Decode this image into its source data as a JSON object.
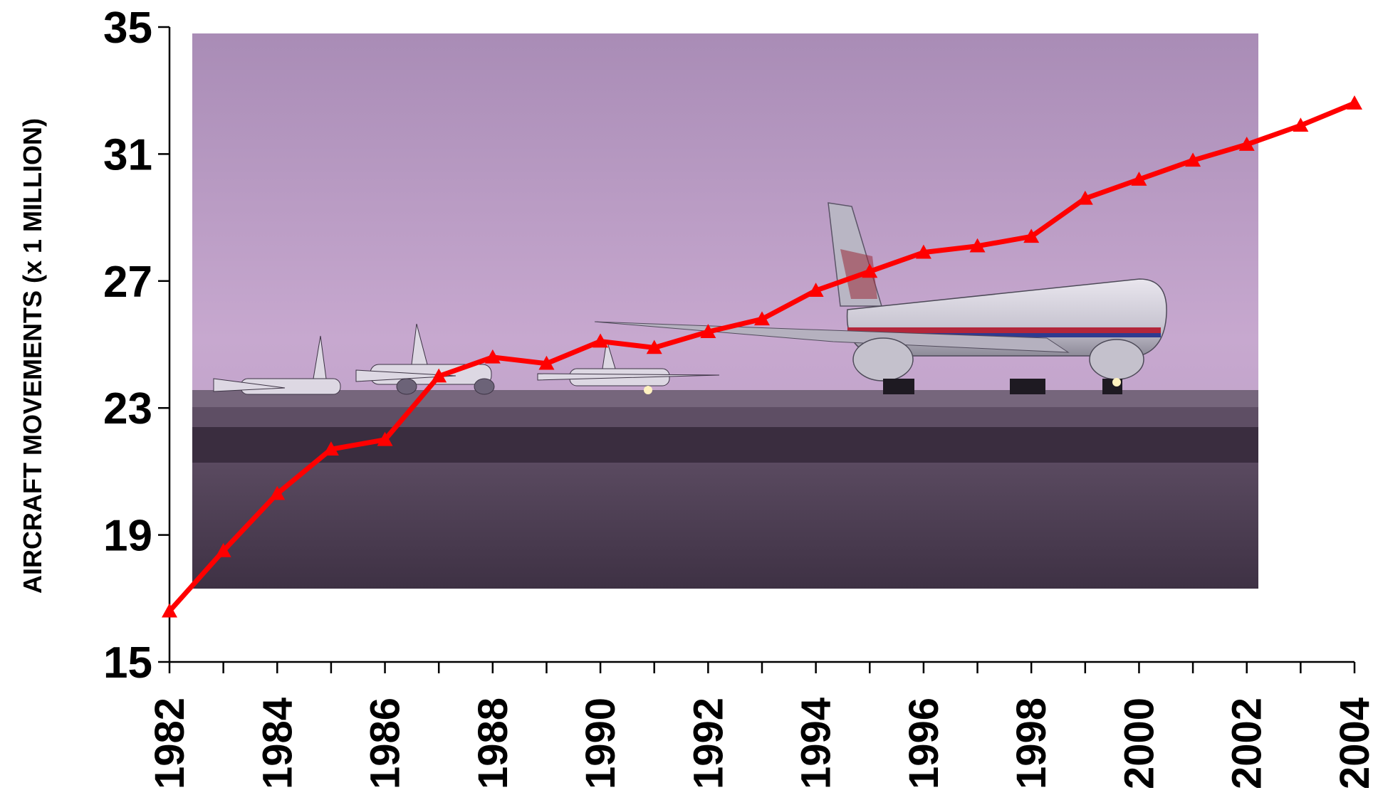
{
  "chart_data": {
    "type": "line",
    "title": "",
    "xlabel": "",
    "ylabel": "AIRCRAFT MOVEMENTS (x 1 MILLION)",
    "x": [
      1982,
      1983,
      1984,
      1985,
      1986,
      1987,
      1988,
      1989,
      1990,
      1991,
      1992,
      1993,
      1994,
      1995,
      1996,
      1997,
      1998,
      1999,
      2000,
      2001,
      2002,
      2003,
      2004
    ],
    "series": [
      {
        "values": [
          16.6,
          18.5,
          20.3,
          21.7,
          22.0,
          24.0,
          24.6,
          24.4,
          25.1,
          24.9,
          25.4,
          25.8,
          26.7,
          27.3,
          27.9,
          28.1,
          28.4,
          29.6,
          30.2,
          30.8,
          31.3,
          31.9,
          32.6
        ],
        "color": "#ff0000",
        "marker": "triangle"
      }
    ],
    "ylim": [
      15,
      35
    ],
    "yticks": [
      "15",
      "19",
      "23",
      "27",
      "31",
      "35"
    ],
    "xtick_labels": [
      "1982",
      "1984",
      "1986",
      "1988",
      "1990",
      "1992",
      "1994",
      "1996",
      "1998",
      "2000",
      "2002",
      "2004"
    ],
    "grid": false,
    "legend": "none",
    "background_image": "photo of airliners taxiing on a runway (American Airlines jet in foreground)"
  }
}
